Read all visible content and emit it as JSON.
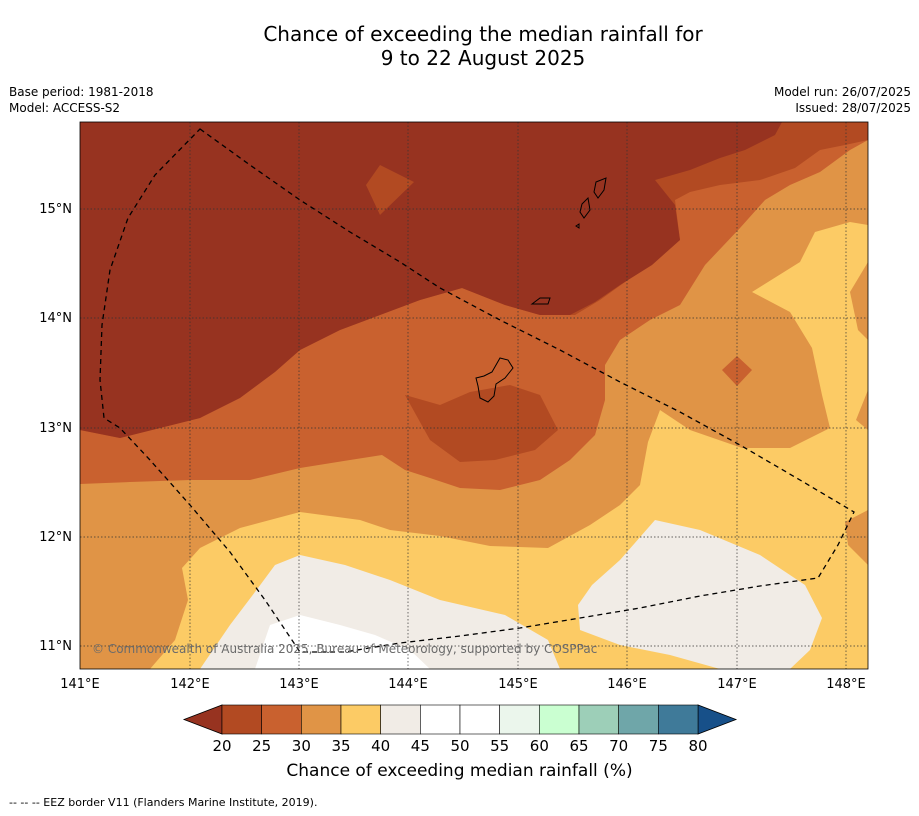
{
  "title": {
    "line1": "Chance of exceeding the median rainfall for",
    "line2": "9 to 22 August 2025"
  },
  "meta": {
    "base_period": "Base period: 1981-2018",
    "model": "Model: ACCESS-S2",
    "model_run": "Model run: 26/07/2025",
    "issued": "Issued: 28/07/2025"
  },
  "axes": {
    "lat_ticks": [
      "15°N",
      "14°N",
      "13°N",
      "12°N",
      "11°N"
    ],
    "lon_ticks": [
      "141°E",
      "142°E",
      "143°E",
      "144°E",
      "145°E",
      "146°E",
      "147°E",
      "148°E"
    ]
  },
  "copyright": "© Commonwealth of Australia 2025, Bureau of Meteorology, supported by COSPPac",
  "colorbar": {
    "ticks": [
      "20",
      "25",
      "30",
      "35",
      "40",
      "45",
      "50",
      "55",
      "60",
      "65",
      "70",
      "75",
      "80"
    ],
    "colors": [
      "#b24a22",
      "#c9612f",
      "#e09446",
      "#fccb65",
      "#f1ece6",
      "#ffffff",
      "#ffffff",
      "#ebf6ec",
      "#caffd1",
      "#9dcfb8",
      "#6fa6a9",
      "#3f7a99"
    ],
    "under_color": "#973320",
    "over_color": "#175089",
    "label": "Chance of exceeding median rainfall (%)"
  },
  "footnote": "--  --  -- EEZ border V11 (Flanders Marine Institute, 2019).",
  "legend_palette": {
    "lt20": "#973320",
    "20_25": "#b24a22",
    "25_30": "#c9612f",
    "30_35": "#e09446",
    "35_40": "#fccb65",
    "40_45": "#f1ece6",
    "45_55": "#ffffff"
  }
}
